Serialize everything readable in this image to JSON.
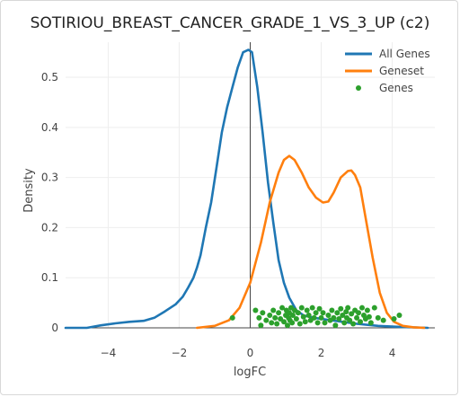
{
  "chart_data": {
    "type": "line",
    "title": "SOTIRIOU_BREAST_CANCER_GRADE_1_VS_3_UP (c2)",
    "xlabel": "logFC",
    "ylabel": "Density",
    "xlim": [
      -5.2,
      5.2
    ],
    "ylim": [
      0,
      0.57
    ],
    "x_ticks": [
      -4,
      -2,
      0,
      2,
      4
    ],
    "x_tick_labels": [
      "−4",
      "−2",
      "0",
      "2",
      "4"
    ],
    "y_ticks": [
      0,
      0.1,
      0.2,
      0.3,
      0.4,
      0.5
    ],
    "y_tick_labels": [
      "0",
      "0.1",
      "0.2",
      "0.3",
      "0.4",
      "0.5"
    ],
    "grid": true,
    "legend_position": "top-right",
    "series": [
      {
        "name": "All Genes",
        "kind": "line",
        "color": "#1f77b4",
        "x": [
          -5.2,
          -4.6,
          -4.2,
          -3.8,
          -3.4,
          -3.0,
          -2.7,
          -2.4,
          -2.1,
          -1.9,
          -1.75,
          -1.6,
          -1.5,
          -1.4,
          -1.25,
          -1.1,
          -0.95,
          -0.8,
          -0.65,
          -0.5,
          -0.35,
          -0.2,
          -0.05,
          0.05,
          0.2,
          0.35,
          0.5,
          0.65,
          0.8,
          0.95,
          1.1,
          1.3,
          1.5,
          1.8,
          2.2,
          2.6,
          3.0,
          3.6,
          4.2,
          5.0
        ],
        "y": [
          0.0,
          0.0,
          0.005,
          0.009,
          0.012,
          0.014,
          0.02,
          0.033,
          0.047,
          0.062,
          0.08,
          0.1,
          0.12,
          0.145,
          0.2,
          0.25,
          0.32,
          0.39,
          0.44,
          0.48,
          0.52,
          0.55,
          0.555,
          0.55,
          0.48,
          0.39,
          0.29,
          0.21,
          0.135,
          0.09,
          0.06,
          0.035,
          0.025,
          0.02,
          0.016,
          0.012,
          0.008,
          0.004,
          0.002,
          0.0
        ]
      },
      {
        "name": "Geneset",
        "kind": "line",
        "color": "#ff7f0e",
        "x": [
          -1.5,
          -1.0,
          -0.6,
          -0.3,
          0.0,
          0.3,
          0.55,
          0.8,
          0.95,
          1.1,
          1.25,
          1.45,
          1.65,
          1.85,
          2.05,
          2.2,
          2.35,
          2.55,
          2.75,
          2.85,
          2.95,
          3.1,
          3.25,
          3.45,
          3.65,
          3.85,
          4.05,
          4.3,
          4.6,
          4.9
        ],
        "y": [
          0.0,
          0.004,
          0.015,
          0.04,
          0.09,
          0.17,
          0.25,
          0.31,
          0.335,
          0.343,
          0.335,
          0.31,
          0.28,
          0.26,
          0.25,
          0.252,
          0.27,
          0.3,
          0.313,
          0.314,
          0.305,
          0.28,
          0.22,
          0.14,
          0.07,
          0.03,
          0.012,
          0.004,
          0.001,
          0.0
        ]
      },
      {
        "name": "Genes",
        "kind": "points",
        "color": "#2ca02c",
        "x": [
          -0.5,
          0.15,
          0.25,
          0.3,
          0.35,
          0.45,
          0.55,
          0.6,
          0.65,
          0.7,
          0.75,
          0.8,
          0.85,
          0.9,
          0.95,
          1.0,
          1.02,
          1.05,
          1.08,
          1.1,
          1.12,
          1.15,
          1.18,
          1.2,
          1.25,
          1.3,
          1.35,
          1.4,
          1.45,
          1.5,
          1.55,
          1.6,
          1.65,
          1.7,
          1.75,
          1.8,
          1.85,
          1.9,
          1.95,
          2.0,
          2.05,
          2.1,
          2.2,
          2.25,
          2.3,
          2.35,
          2.4,
          2.45,
          2.5,
          2.55,
          2.6,
          2.65,
          2.7,
          2.72,
          2.75,
          2.8,
          2.85,
          2.9,
          2.95,
          3.0,
          3.05,
          3.1,
          3.15,
          3.2,
          3.25,
          3.3,
          3.35,
          3.4,
          3.5,
          3.6,
          3.75,
          4.05,
          4.2
        ],
        "y": [
          0.02,
          0.035,
          0.02,
          0.005,
          0.03,
          0.015,
          0.025,
          0.01,
          0.035,
          0.02,
          0.008,
          0.03,
          0.018,
          0.04,
          0.012,
          0.025,
          0.035,
          0.005,
          0.02,
          0.03,
          0.015,
          0.04,
          0.01,
          0.025,
          0.035,
          0.018,
          0.03,
          0.008,
          0.04,
          0.022,
          0.012,
          0.035,
          0.025,
          0.015,
          0.04,
          0.02,
          0.03,
          0.01,
          0.038,
          0.02,
          0.03,
          0.01,
          0.025,
          0.015,
          0.035,
          0.02,
          0.005,
          0.03,
          0.018,
          0.038,
          0.025,
          0.01,
          0.032,
          0.02,
          0.04,
          0.015,
          0.028,
          0.008,
          0.035,
          0.02,
          0.03,
          0.012,
          0.04,
          0.025,
          0.018,
          0.035,
          0.022,
          0.01,
          0.04,
          0.02,
          0.015,
          0.018,
          0.025
        ]
      }
    ]
  }
}
